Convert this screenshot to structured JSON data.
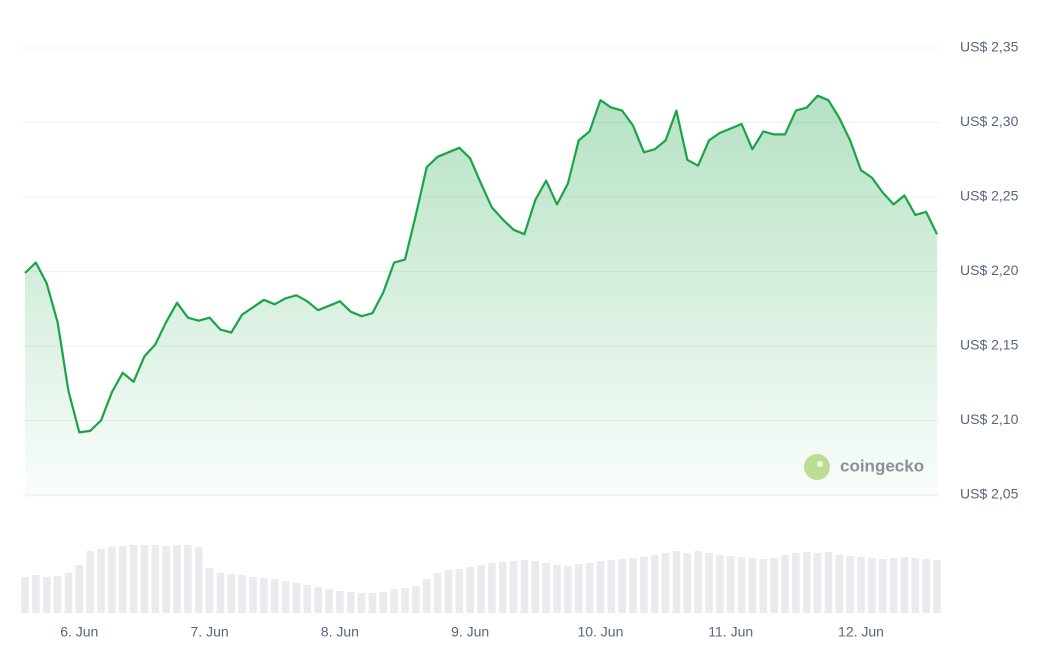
{
  "chart_data": {
    "type": "line",
    "watermark": "coingecko",
    "categories": [
      null,
      null,
      null,
      null,
      null,
      "6. Jun",
      null,
      null,
      null,
      null,
      null,
      null,
      null,
      null,
      null,
      null,
      null,
      "7. Jun",
      null,
      null,
      null,
      null,
      null,
      null,
      null,
      null,
      null,
      null,
      null,
      "8. Jun",
      null,
      null,
      null,
      null,
      null,
      null,
      null,
      null,
      null,
      null,
      null,
      "9. Jun",
      null,
      null,
      null,
      null,
      null,
      null,
      null,
      null,
      null,
      null,
      null,
      "10. Jun",
      null,
      null,
      null,
      null,
      null,
      null,
      null,
      null,
      null,
      null,
      null,
      "11. Jun",
      null,
      null,
      null,
      null,
      null,
      null,
      null,
      null,
      null,
      null,
      null,
      "12. Jun",
      null,
      null,
      null,
      null,
      null,
      null,
      null
    ],
    "values": [
      2.199,
      2.206,
      2.192,
      2.166,
      2.12,
      2.092,
      2.093,
      2.1,
      2.119,
      2.132,
      2.126,
      2.143,
      2.151,
      2.166,
      2.179,
      2.169,
      2.167,
      2.169,
      2.161,
      2.159,
      2.171,
      2.176,
      2.181,
      2.178,
      2.182,
      2.184,
      2.18,
      2.174,
      2.177,
      2.18,
      2.173,
      2.17,
      2.172,
      2.186,
      2.206,
      2.208,
      2.238,
      2.27,
      2.277,
      2.28,
      2.283,
      2.276,
      2.259,
      2.243,
      2.235,
      2.228,
      2.225,
      2.248,
      2.261,
      2.245,
      2.259,
      2.288,
      2.294,
      2.315,
      2.31,
      2.308,
      2.298,
      2.28,
      2.282,
      2.288,
      2.308,
      2.275,
      2.271,
      2.288,
      2.293,
      2.296,
      2.299,
      2.282,
      2.294,
      2.292,
      2.292,
      2.308,
      2.31,
      2.318,
      2.315,
      2.303,
      2.288,
      2.268,
      2.263,
      2.253,
      2.245,
      2.251,
      2.238,
      2.24,
      2.225
    ],
    "color": "#1aa447",
    "volumes": [
      36,
      38,
      36,
      37,
      40,
      48,
      62,
      64,
      66,
      67,
      68,
      68,
      68,
      67,
      68,
      68,
      66,
      45,
      40,
      39,
      38,
      36,
      35,
      34,
      32,
      30,
      28,
      26,
      24,
      22,
      21,
      20,
      20,
      21,
      24,
      25,
      27,
      34,
      40,
      43,
      44,
      46,
      48,
      50,
      51,
      52,
      53,
      52,
      50,
      48,
      47,
      49,
      50,
      52,
      53,
      54,
      55,
      56,
      58,
      60,
      62,
      60,
      62,
      60,
      58,
      57,
      56,
      55,
      54,
      55,
      58,
      60,
      61,
      60,
      61,
      58,
      57,
      56,
      55,
      54,
      55,
      56,
      55,
      54,
      53
    ],
    "volume_color": "#e9ebef",
    "ylim": [
      2.05,
      2.35
    ],
    "yticks": [
      {
        "value": 2.35,
        "label": "US$ 2,35"
      },
      {
        "value": 2.3,
        "label": "US$ 2,30"
      },
      {
        "value": 2.25,
        "label": "US$ 2,25"
      },
      {
        "value": 2.2,
        "label": "US$ 2,20"
      },
      {
        "value": 2.15,
        "label": "US$ 2,15"
      },
      {
        "value": 2.1,
        "label": "US$ 2,10"
      },
      {
        "value": 2.05,
        "label": "US$ 2,05"
      }
    ],
    "grid": true
  }
}
